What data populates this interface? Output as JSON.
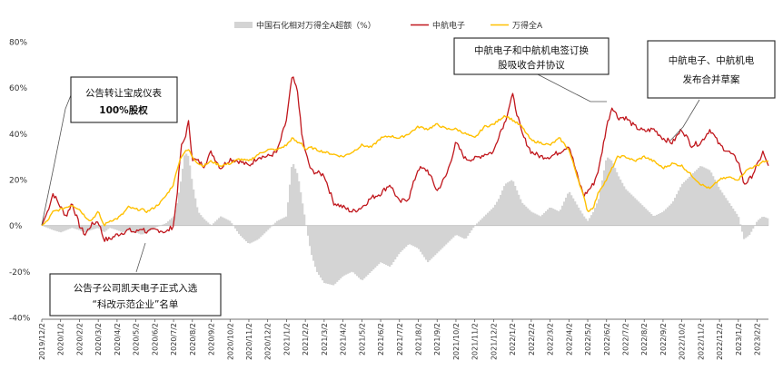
{
  "chart_data": {
    "type": "line",
    "title": "",
    "xlabel": "",
    "ylabel": "",
    "ylim": [
      -0.4,
      0.8
    ],
    "yticks": [
      -0.4,
      -0.2,
      0,
      0.2,
      0.4,
      0.6,
      0.8
    ],
    "ytick_labels": [
      "-40%",
      "-20%",
      "0%",
      "20%",
      "40%",
      "60%",
      "80%"
    ],
    "x_tick_labels": [
      "2019/12/2",
      "2020/1/2",
      "2020/2/2",
      "2020/3/2",
      "2020/4/2",
      "2020/5/2",
      "2020/6/2",
      "2020/7/2",
      "2020/8/2",
      "2020/9/2",
      "2020/10/2",
      "2020/11/2",
      "2020/12/2",
      "2021/1/2",
      "2021/2/2",
      "2021/3/2",
      "2021/4/2",
      "2021/5/2",
      "2021/6/2",
      "2021/7/2",
      "2021/8/2",
      "2021/9/2",
      "2021/10/2",
      "2021/11/2",
      "2021/12/2",
      "2022/1/2",
      "2022/2/2",
      "2022/3/2",
      "2022/4/2",
      "2022/5/2",
      "2022/6/2",
      "2022/7/2",
      "2022/8/2",
      "2022/9/2",
      "2022/10/2",
      "2022/11/2",
      "2022/12/2",
      "2023/1/2",
      "2023/2/2"
    ],
    "legend": {
      "placement": "top-center",
      "entries": [
        {
          "name": "中国石化相对万得全A超额（%）",
          "kind": "area",
          "color": "#d4d4d4"
        },
        {
          "name": "中航电子",
          "kind": "line",
          "color": "#c0161c"
        },
        {
          "name": "万得全A",
          "kind": "line",
          "color": "#ffc000"
        }
      ]
    },
    "series": [
      {
        "name": "中航电子",
        "color": "#c0161c",
        "x": [
          0,
          0.3,
          0.6,
          1.0,
          1.3,
          1.6,
          2.0,
          2.3,
          2.6,
          3.0,
          3.3,
          3.6,
          4.0,
          4.3,
          4.6,
          5.0,
          5.3,
          5.6,
          6.0,
          6.3,
          6.6,
          7.0,
          7.2,
          7.4,
          7.6,
          7.8,
          8.0,
          8.3,
          8.6,
          9.0,
          9.5,
          10,
          10.5,
          11,
          11.5,
          12,
          12.5,
          13,
          13.3,
          13.6,
          13.8,
          14.0,
          14.3,
          14.6,
          15,
          15.5,
          16,
          16.5,
          17,
          17.5,
          18,
          18.5,
          19,
          19.5,
          20,
          20.5,
          21,
          21.5,
          22,
          22.5,
          23,
          23.5,
          24,
          24.3,
          24.6,
          25,
          25.5,
          26,
          26.5,
          27,
          27.5,
          28,
          28.5,
          28.8,
          29,
          29.3,
          29.6,
          30,
          30.3,
          30.6,
          31,
          31.5,
          32,
          32.5,
          33,
          33.5,
          34,
          34.5,
          35,
          35.5,
          36,
          36.5,
          37,
          37.3,
          37.6,
          38,
          38.3,
          38.6
        ],
        "values": [
          0,
          0.06,
          0.14,
          0.08,
          0.04,
          0.1,
          0.0,
          -0.04,
          0.0,
          0.02,
          -0.06,
          -0.06,
          -0.04,
          -0.03,
          -0.02,
          -0.03,
          -0.01,
          -0.03,
          -0.02,
          -0.02,
          -0.03,
          0.0,
          0.15,
          0.34,
          0.38,
          0.45,
          0.29,
          0.28,
          0.26,
          0.32,
          0.25,
          0.29,
          0.28,
          0.26,
          0.3,
          0.3,
          0.32,
          0.46,
          0.65,
          0.58,
          0.4,
          0.32,
          0.24,
          0.23,
          0.22,
          0.1,
          0.08,
          0.06,
          0.08,
          0.12,
          0.14,
          0.18,
          0.1,
          0.12,
          0.25,
          0.24,
          0.15,
          0.22,
          0.36,
          0.29,
          0.29,
          0.31,
          0.32,
          0.4,
          0.45,
          0.57,
          0.4,
          0.32,
          0.3,
          0.3,
          0.32,
          0.35,
          0.2,
          0.13,
          0.15,
          0.18,
          0.25,
          0.43,
          0.52,
          0.47,
          0.47,
          0.43,
          0.41,
          0.42,
          0.38,
          0.36,
          0.42,
          0.35,
          0.36,
          0.42,
          0.35,
          0.32,
          0.28,
          0.18,
          0.2,
          0.26,
          0.32,
          0.26
        ]
      },
      {
        "name": "万得全A",
        "color": "#ffc000",
        "x": [
          0,
          0.3,
          0.6,
          1.0,
          1.3,
          1.6,
          2.0,
          2.3,
          2.6,
          3.0,
          3.3,
          3.6,
          4.0,
          4.3,
          4.6,
          5.0,
          5.3,
          5.6,
          6.0,
          6.3,
          6.6,
          7.0,
          7.2,
          7.4,
          7.6,
          7.8,
          8.0,
          8.3,
          8.6,
          9.0,
          9.5,
          10,
          10.5,
          11,
          11.5,
          12,
          12.5,
          13,
          13.3,
          13.6,
          13.8,
          14.0,
          14.3,
          14.6,
          15,
          15.5,
          16,
          16.5,
          17,
          17.5,
          18,
          18.5,
          19,
          19.5,
          20,
          20.5,
          21,
          21.5,
          22,
          22.5,
          23,
          23.5,
          24,
          24.3,
          24.6,
          25,
          25.5,
          26,
          26.5,
          27,
          27.5,
          28,
          28.5,
          28.8,
          29,
          29.3,
          29.6,
          30,
          30.3,
          30.6,
          31,
          31.5,
          32,
          32.5,
          33,
          33.5,
          34,
          34.5,
          35,
          35.5,
          36,
          36.5,
          37,
          37.3,
          37.6,
          38,
          38.3,
          38.6
        ],
        "values": [
          0,
          0.02,
          0.06,
          0.07,
          0.08,
          0.09,
          0.07,
          0.04,
          0.02,
          0.06,
          0.0,
          0.02,
          0.03,
          0.05,
          0.08,
          0.07,
          0.07,
          0.06,
          0.08,
          0.1,
          0.13,
          0.18,
          0.25,
          0.3,
          0.32,
          0.33,
          0.3,
          0.27,
          0.26,
          0.28,
          0.26,
          0.27,
          0.29,
          0.28,
          0.31,
          0.33,
          0.33,
          0.35,
          0.38,
          0.36,
          0.36,
          0.33,
          0.34,
          0.33,
          0.32,
          0.31,
          0.3,
          0.32,
          0.35,
          0.34,
          0.38,
          0.39,
          0.38,
          0.4,
          0.43,
          0.42,
          0.44,
          0.42,
          0.42,
          0.4,
          0.38,
          0.43,
          0.44,
          0.46,
          0.48,
          0.46,
          0.43,
          0.37,
          0.36,
          0.35,
          0.38,
          0.33,
          0.2,
          0.12,
          0.06,
          0.08,
          0.15,
          0.2,
          0.25,
          0.3,
          0.3,
          0.28,
          0.3,
          0.28,
          0.25,
          0.27,
          0.26,
          0.22,
          0.18,
          0.16,
          0.2,
          0.21,
          0.2,
          0.23,
          0.25,
          0.26,
          0.28,
          0.28
        ]
      },
      {
        "name": "中国石化相对万得全A超额（%）",
        "color": "#d4d4d4",
        "x": [
          0,
          0.3,
          0.6,
          1.0,
          1.3,
          1.6,
          2.0,
          2.3,
          2.6,
          3.0,
          3.3,
          3.6,
          4.0,
          4.3,
          4.6,
          5.0,
          5.3,
          5.6,
          6.0,
          6.3,
          6.6,
          7.0,
          7.2,
          7.4,
          7.6,
          7.8,
          8.0,
          8.3,
          8.6,
          9.0,
          9.5,
          10,
          10.5,
          11,
          11.5,
          12,
          12.5,
          13,
          13.3,
          13.6,
          13.8,
          14.0,
          14.3,
          14.6,
          15,
          15.5,
          16,
          16.5,
          17,
          17.5,
          18,
          18.5,
          19,
          19.5,
          20,
          20.5,
          21,
          21.5,
          22,
          22.5,
          23,
          23.5,
          24,
          24.3,
          24.6,
          25,
          25.5,
          26,
          26.5,
          27,
          27.5,
          28,
          28.5,
          28.8,
          29,
          29.3,
          29.6,
          30,
          30.3,
          30.6,
          31,
          31.5,
          32,
          32.5,
          33,
          33.5,
          34,
          34.5,
          35,
          35.5,
          36,
          36.5,
          37,
          37.3,
          37.6,
          38,
          38.3,
          38.6
        ],
        "values": [
          0,
          -0.01,
          -0.02,
          -0.03,
          -0.02,
          -0.01,
          -0.02,
          -0.03,
          -0.02,
          -0.01,
          -0.03,
          -0.01,
          -0.02,
          -0.03,
          -0.02,
          -0.03,
          -0.04,
          -0.03,
          -0.01,
          0.0,
          0.01,
          0.04,
          0.1,
          0.2,
          0.32,
          0.3,
          0.18,
          0.06,
          0.03,
          0.0,
          0.04,
          0.02,
          -0.04,
          -0.08,
          -0.06,
          -0.02,
          0.02,
          0.04,
          0.28,
          0.22,
          0.12,
          0.02,
          -0.12,
          -0.2,
          -0.25,
          -0.26,
          -0.22,
          -0.2,
          -0.24,
          -0.2,
          -0.16,
          -0.18,
          -0.12,
          -0.08,
          -0.1,
          -0.16,
          -0.12,
          -0.08,
          -0.04,
          -0.06,
          0.0,
          0.04,
          0.08,
          0.12,
          0.18,
          0.2,
          0.1,
          0.06,
          0.04,
          0.08,
          0.06,
          0.15,
          0.08,
          0.04,
          0.02,
          0.06,
          0.12,
          0.3,
          0.28,
          0.22,
          0.16,
          0.12,
          0.08,
          0.04,
          0.06,
          0.1,
          0.18,
          0.22,
          0.26,
          0.24,
          0.16,
          0.1,
          0.04,
          -0.06,
          -0.04,
          0.02,
          0.04,
          0.03
        ]
      }
    ],
    "annotations": [
      {
        "id": "a1",
        "lines": [
          "公告转让宝成仪表",
          "100%股权"
        ]
      },
      {
        "id": "a2",
        "lines": [
          "公告子公司凯天电子正式入选",
          "“科改示范企业”名单"
        ]
      },
      {
        "id": "a3",
        "lines": [
          "中航电子和中航机电签订换",
          "股吸收合并协议"
        ]
      },
      {
        "id": "a4",
        "lines": [
          "中航电子、中航机电",
          "发布合并草案"
        ]
      }
    ]
  }
}
